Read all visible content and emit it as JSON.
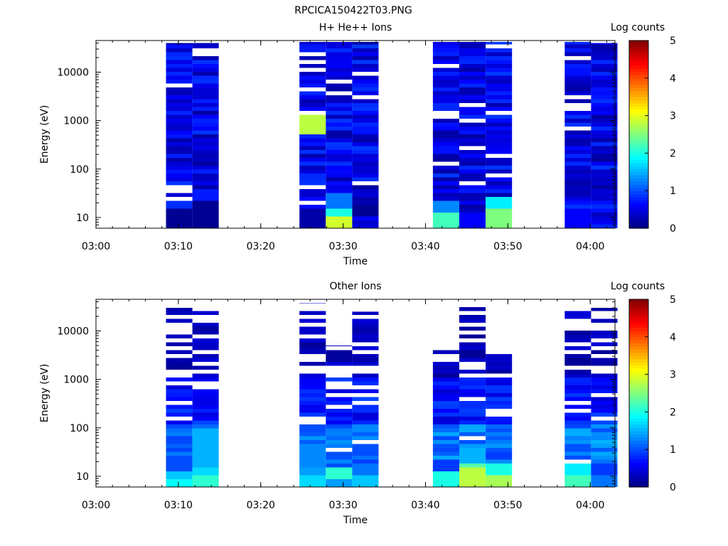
{
  "figure_title": "RPCICA150422T03.PNG",
  "colorbar_stops": [
    "#00007f",
    "#0000ff",
    "#007fff",
    "#00ffff",
    "#7fff7f",
    "#ffff00",
    "#ff7f00",
    "#ff0000",
    "#7f0000"
  ],
  "chart_data": [
    {
      "type": "heatmap",
      "title": "H+ He++ Ions",
      "xlabel": "Time",
      "ylabel": "Energy (eV)",
      "y_scale": "log",
      "xlim": [
        "03:00",
        "04:03"
      ],
      "ylim": [
        6,
        45000
      ],
      "x_ticks": [
        "03:00",
        "03:10",
        "03:20",
        "03:30",
        "03:40",
        "03:50",
        "04:00"
      ],
      "y_ticks": [
        "10",
        "100",
        "1000",
        "10000"
      ],
      "colorbar_label": "Log counts",
      "colorbar_range": [
        0,
        5
      ],
      "colorbar_ticks": [
        "0",
        "1",
        "2",
        "3",
        "4",
        "5"
      ],
      "columns": [
        {
          "start": "03:08.5",
          "end": "03:11.7",
          "ymax": 40000
        },
        {
          "start": "03:11.7",
          "end": "03:14.9",
          "ymax": 40000
        },
        {
          "start": "03:24.7",
          "end": "03:27.9",
          "ymax": 42000
        },
        {
          "start": "03:27.9",
          "end": "03:31.1",
          "ymax": 42000
        },
        {
          "start": "03:31.1",
          "end": "03:34.3",
          "ymax": 42000
        },
        {
          "start": "03:40.9",
          "end": "03:44.1",
          "ymax": 42000
        },
        {
          "start": "03:44.1",
          "end": "03:47.3",
          "ymax": 42000
        },
        {
          "start": "03:47.3",
          "end": "03:50.5",
          "ymax": 42000
        },
        {
          "start": "03:56.9",
          "end": "04:00.1",
          "ymax": 42000
        },
        {
          "start": "04:00.1",
          "end": "04:03.3",
          "ymax": 40000
        }
      ],
      "features": [
        {
          "column": 0,
          "e_lo": 6,
          "e_hi": 15,
          "value": 0.1
        },
        {
          "column": 1,
          "e_lo": 6,
          "e_hi": 20,
          "value": 0.1
        },
        {
          "column": 2,
          "e_lo": 6,
          "e_hi": 15,
          "value": 0.2
        },
        {
          "column": 2,
          "e_lo": 600,
          "e_hi": 1300,
          "value": 2.8
        },
        {
          "column": 3,
          "e_lo": 6,
          "e_hi": 11,
          "value": 2.9
        },
        {
          "column": 3,
          "e_lo": 11,
          "e_hi": 16,
          "value": 2.0
        },
        {
          "column": 3,
          "e_lo": 16,
          "e_hi": 30,
          "value": 1.2
        },
        {
          "column": 4,
          "e_lo": 11,
          "e_hi": 16,
          "value": 0.1
        },
        {
          "column": 5,
          "e_lo": 6,
          "e_hi": 15,
          "value": 2.2
        },
        {
          "column": 5,
          "e_lo": 15,
          "e_hi": 20,
          "value": 1.3
        },
        {
          "column": 6,
          "e_lo": 6,
          "e_hi": 12,
          "value": 0.6
        },
        {
          "column": 7,
          "e_lo": 6,
          "e_hi": 16,
          "value": 2.5
        },
        {
          "column": 7,
          "e_lo": 16,
          "e_hi": 24,
          "value": 1.8
        },
        {
          "column": 8,
          "e_lo": 6,
          "e_hi": 15,
          "value": 0.6
        }
      ]
    },
    {
      "type": "heatmap",
      "title": "Other Ions",
      "xlabel": "Time",
      "ylabel": "Energy (eV)",
      "y_scale": "log",
      "xlim": [
        "03:00",
        "04:03"
      ],
      "ylim": [
        6,
        45000
      ],
      "x_ticks": [
        "03:00",
        "03:10",
        "03:20",
        "03:30",
        "03:40",
        "03:50",
        "04:00"
      ],
      "y_ticks": [
        "10",
        "100",
        "1000",
        "10000"
      ],
      "colorbar_label": "Log counts",
      "colorbar_range": [
        0,
        5
      ],
      "colorbar_ticks": [
        "0",
        "1",
        "2",
        "3",
        "4",
        "5"
      ],
      "columns": [
        {
          "start": "03:08.5",
          "end": "03:11.7",
          "ymax": 30000
        },
        {
          "start": "03:11.7",
          "end": "03:14.9",
          "ymax": 30000
        },
        {
          "start": "03:24.7",
          "end": "03:27.9",
          "ymax": 38000
        },
        {
          "start": "03:27.9",
          "end": "03:31.1",
          "ymax": 5000
        },
        {
          "start": "03:31.1",
          "end": "03:34.3",
          "ymax": 25000
        },
        {
          "start": "03:40.9",
          "end": "03:44.1",
          "ymax": 4500
        },
        {
          "start": "03:44.1",
          "end": "03:47.3",
          "ymax": 42000
        },
        {
          "start": "03:47.3",
          "end": "03:50.5",
          "ymax": 4000
        },
        {
          "start": "03:56.9",
          "end": "04:00.1",
          "ymax": 30000
        },
        {
          "start": "04:00.1",
          "end": "04:03.3",
          "ymax": 30000
        }
      ],
      "features": [
        {
          "column": 0,
          "e_lo": 6,
          "e_hi": 10,
          "value": 1.9
        },
        {
          "column": 0,
          "e_lo": 10,
          "e_hi": 15,
          "value": 1.6
        },
        {
          "column": 0,
          "e_lo": 15,
          "e_hi": 25,
          "value": 1.0
        },
        {
          "column": 1,
          "e_lo": 6,
          "e_hi": 11,
          "value": 2.1
        },
        {
          "column": 1,
          "e_lo": 11,
          "e_hi": 16,
          "value": 1.7
        },
        {
          "column": 1,
          "e_lo": 16,
          "e_hi": 90,
          "value": 1.5
        },
        {
          "column": 2,
          "e_lo": 6,
          "e_hi": 11,
          "value": 1.7
        },
        {
          "column": 2,
          "e_lo": 11,
          "e_hi": 16,
          "value": 1.4
        },
        {
          "column": 2,
          "e_lo": 16,
          "e_hi": 40,
          "value": 1.3
        },
        {
          "column": 3,
          "e_lo": 6,
          "e_hi": 10,
          "value": 1.4
        },
        {
          "column": 3,
          "e_lo": 10,
          "e_hi": 15,
          "value": 2.1
        },
        {
          "column": 4,
          "e_lo": 6,
          "e_hi": 12,
          "value": 1.6
        },
        {
          "column": 4,
          "e_lo": 12,
          "e_hi": 16,
          "value": 1.2
        },
        {
          "column": 5,
          "e_lo": 6,
          "e_hi": 15,
          "value": 2.0
        },
        {
          "column": 5,
          "e_lo": 15,
          "e_hi": 20,
          "value": 0.9
        },
        {
          "column": 6,
          "e_lo": 6,
          "e_hi": 16,
          "value": 2.8
        },
        {
          "column": 6,
          "e_lo": 16,
          "e_hi": 22,
          "value": 2.3
        },
        {
          "column": 6,
          "e_lo": 22,
          "e_hi": 35,
          "value": 1.5
        },
        {
          "column": 7,
          "e_lo": 6,
          "e_hi": 12,
          "value": 2.7
        },
        {
          "column": 7,
          "e_lo": 12,
          "e_hi": 18,
          "value": 2.0
        },
        {
          "column": 8,
          "e_lo": 6,
          "e_hi": 12,
          "value": 2.2
        },
        {
          "column": 8,
          "e_lo": 12,
          "e_hi": 16,
          "value": 1.8
        },
        {
          "column": 9,
          "e_lo": 6,
          "e_hi": 11,
          "value": 1.2
        },
        {
          "column": 9,
          "e_lo": 11,
          "e_hi": 16,
          "value": 0.9
        }
      ]
    }
  ]
}
